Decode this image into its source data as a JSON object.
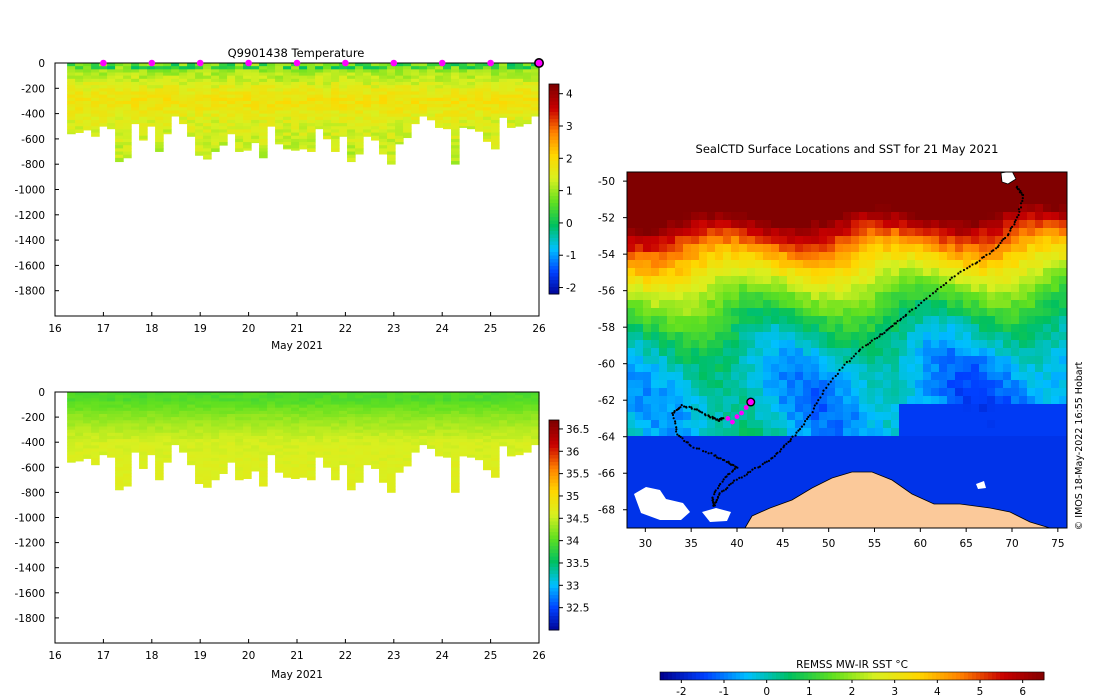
{
  "chart_data": [
    {
      "type": "heatmap",
      "title": "Q9901438  Temperature",
      "xlabel": "May 2021",
      "ylabel": "",
      "xlim": [
        16,
        26
      ],
      "ylim": [
        -2000,
        0
      ],
      "x_ticks": [
        16,
        17,
        18,
        19,
        20,
        21,
        22,
        23,
        24,
        25,
        26
      ],
      "y_ticks": [
        0,
        -200,
        -400,
        -600,
        -800,
        -1000,
        -1200,
        -1400,
        -1600,
        -1800
      ],
      "colorbar": {
        "ticks": [
          4,
          3,
          2,
          1,
          0,
          -1,
          -2
        ],
        "range": [
          -2.2,
          4.3
        ],
        "colors": [
          "#00008f",
          "#0040ff",
          "#00c0ff",
          "#00c060",
          "#60e020",
          "#d8f020",
          "#ffd700",
          "#ff8000",
          "#c80000",
          "#800000"
        ]
      },
      "surface_markers_x": [
        17,
        18,
        19,
        20,
        21,
        22,
        23,
        24,
        25
      ],
      "current_marker_x": 26,
      "profile_bottom_depths": [
        560,
        550,
        530,
        580,
        500,
        520,
        780,
        750,
        480,
        610,
        500,
        700,
        560,
        420,
        480,
        580,
        730,
        760,
        700,
        650,
        560,
        700,
        690,
        630,
        750,
        500,
        640,
        680,
        690,
        680,
        700,
        520,
        600,
        700,
        580,
        780,
        720,
        580,
        610,
        720,
        800,
        640,
        590,
        480,
        420,
        450,
        510,
        520,
        800,
        510,
        520,
        540,
        620,
        680,
        430,
        510,
        500,
        480,
        420
      ],
      "profile_layers": [
        [
          50,
          1.0
        ],
        [
          150,
          1.4
        ],
        [
          300,
          1.9
        ],
        [
          450,
          1.5
        ],
        [
          800,
          1.2
        ]
      ]
    },
    {
      "type": "heatmap",
      "title": "",
      "xlabel": "May 2021",
      "ylabel": "",
      "xlim": [
        16,
        26
      ],
      "ylim": [
        -2000,
        0
      ],
      "x_ticks": [
        16,
        17,
        18,
        19,
        20,
        21,
        22,
        23,
        24,
        25,
        26
      ],
      "y_ticks": [
        0,
        -200,
        -400,
        -600,
        -800,
        -1000,
        -1200,
        -1400,
        -1600,
        -1800
      ],
      "colorbar": {
        "ticks": [
          36.5,
          36,
          35.5,
          35,
          34.5,
          34,
          33.5,
          33,
          32.5
        ],
        "range": [
          32,
          36.7
        ],
        "colors": [
          "#00008f",
          "#0040ff",
          "#00c0ff",
          "#00c060",
          "#60e020",
          "#d8f020",
          "#ffd700",
          "#ff8000",
          "#c80000",
          "#800000"
        ]
      },
      "profile_bottom_depths": [
        560,
        550,
        530,
        580,
        500,
        520,
        780,
        750,
        480,
        610,
        500,
        700,
        560,
        420,
        480,
        580,
        730,
        760,
        700,
        650,
        560,
        700,
        690,
        630,
        750,
        500,
        640,
        680,
        690,
        680,
        700,
        520,
        600,
        700,
        580,
        780,
        720,
        580,
        610,
        720,
        800,
        640,
        590,
        480,
        420,
        450,
        510,
        520,
        800,
        510,
        520,
        540,
        620,
        680,
        430,
        510,
        500,
        480,
        420
      ],
      "profile_layers": [
        [
          60,
          34.0
        ],
        [
          200,
          34.3
        ],
        [
          400,
          34.6
        ],
        [
          800,
          34.7
        ]
      ]
    },
    {
      "type": "heatmap",
      "title": "SealCTD Surface Locations and SST for 21 May 2021",
      "xlabel": "",
      "ylabel": "",
      "xlim": [
        28,
        76
      ],
      "ylim": [
        -69,
        -49.5
      ],
      "x_ticks": [
        30,
        35,
        40,
        45,
        50,
        55,
        60,
        65,
        70,
        75
      ],
      "y_ticks": [
        -50,
        -52,
        -54,
        -56,
        -58,
        -60,
        -62,
        -64,
        -66,
        -68
      ],
      "colorbar": {
        "label": "REMSS MW-IR SST °C",
        "ticks": [
          -2,
          -1,
          0,
          1,
          2,
          3,
          4,
          5,
          6
        ],
        "range": [
          -2.5,
          6.5
        ],
        "colors": [
          "#00008f",
          "#0040ff",
          "#00c0ff",
          "#00c060",
          "#60e020",
          "#d8f020",
          "#ffd700",
          "#ff8000",
          "#c80000",
          "#800000"
        ]
      },
      "track": {
        "lon": [
          70.5,
          71.2,
          70.6,
          69.5,
          68.0,
          66.0,
          63.5,
          61.0,
          58.5,
          57.0,
          55.5,
          53.5,
          51.5,
          49.5,
          48.0,
          46.5,
          45.0,
          43.5,
          41.5,
          39.5,
          38.0,
          37.5,
          37.3,
          38.5,
          40.0,
          39.0,
          37.5,
          35.0,
          33.5,
          33.0,
          34.0,
          35.5,
          37.0,
          38.0,
          38.5
        ],
        "lat": [
          -50.3,
          -50.8,
          -52.0,
          -53.0,
          -53.8,
          -54.5,
          -55.3,
          -56.3,
          -57.3,
          -57.9,
          -58.5,
          -59.2,
          -60.2,
          -61.5,
          -62.8,
          -63.8,
          -64.6,
          -65.3,
          -65.9,
          -66.5,
          -67.2,
          -67.8,
          -67.3,
          -66.3,
          -65.7,
          -65.4,
          -65.0,
          -64.5,
          -63.9,
          -62.7,
          -62.3,
          -62.5,
          -62.9,
          -63.1,
          -63.0
        ]
      },
      "recent_track": {
        "lon": [
          39.0,
          39.5,
          40.0,
          40.5,
          41.0,
          41.5
        ],
        "lat": [
          -63.0,
          -63.2,
          -62.9,
          -62.7,
          -62.4,
          -62.1
        ]
      },
      "latest_position": {
        "lon": 41.5,
        "lat": -62.1
      },
      "credit": "© IMOS 18-May-2022 16:55 Hobart"
    }
  ]
}
